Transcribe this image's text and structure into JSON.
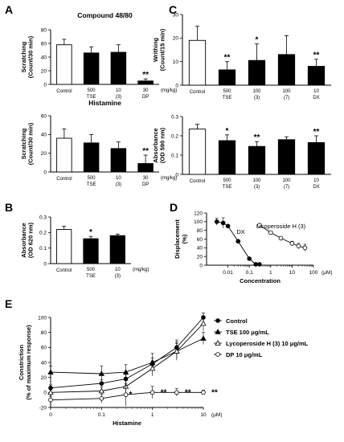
{
  "chart_data": [
    {
      "id": "A-top",
      "panel": "A",
      "type": "bar",
      "title": "Compound 48/80",
      "ylabel": "Scratching (Count/30 min)",
      "ylim": [
        0,
        80
      ],
      "yticks": [
        0,
        20,
        40,
        60,
        80
      ],
      "unit": "(mg/kg)",
      "categories": [
        {
          "name": "Control",
          "dose": "",
          "sub": ""
        },
        {
          "name": "TSE",
          "dose": "500",
          "sub": ""
        },
        {
          "name": "(3)",
          "dose": "10",
          "sub": ""
        },
        {
          "name": "DP",
          "dose": "30",
          "sub": ""
        }
      ],
      "values": [
        58,
        46,
        47,
        5
      ],
      "errors": [
        8,
        9,
        11,
        3
      ],
      "fills": [
        "#ffffff",
        "#000000",
        "#000000",
        "#000000"
      ],
      "significance": [
        "",
        "",
        "",
        "**"
      ]
    },
    {
      "id": "A-bottom",
      "panel": "",
      "type": "bar",
      "title": "Histamine",
      "ylabel": "Scratching (Count/30 min)",
      "ylim": [
        0,
        60
      ],
      "yticks": [
        0,
        20,
        40,
        60
      ],
      "unit": "(mg/kg)",
      "categories": [
        {
          "name": "Control",
          "dose": "",
          "sub": ""
        },
        {
          "name": "TSE",
          "dose": "500",
          "sub": ""
        },
        {
          "name": "(3)",
          "dose": "10",
          "sub": ""
        },
        {
          "name": "DP",
          "dose": "30",
          "sub": ""
        }
      ],
      "values": [
        36,
        31,
        25,
        9
      ],
      "errors": [
        10,
        9,
        7,
        9
      ],
      "fills": [
        "#ffffff",
        "#000000",
        "#000000",
        "#000000"
      ],
      "significance": [
        "",
        "",
        "",
        "**"
      ]
    },
    {
      "id": "B",
      "panel": "B",
      "type": "bar",
      "title": "",
      "ylabel": "Absorbance (OD 620 nm)",
      "ylim": [
        0,
        0.3
      ],
      "yticks": [
        0,
        0.1,
        0.2,
        0.3
      ],
      "unit": "(mg/kg)",
      "categories": [
        {
          "name": "Control",
          "dose": "",
          "sub": ""
        },
        {
          "name": "TSE",
          "dose": "500",
          "sub": ""
        },
        {
          "name": "(3)",
          "dose": "10",
          "sub": ""
        }
      ],
      "values": [
        0.22,
        0.16,
        0.18
      ],
      "errors": [
        0.02,
        0.015,
        0.01
      ],
      "fills": [
        "#ffffff",
        "#000000",
        "#000000"
      ],
      "significance": [
        "",
        "*",
        ""
      ]
    },
    {
      "id": "C-top",
      "panel": "C",
      "type": "bar",
      "title": "",
      "ylabel": "Writhing (Count/15 min)",
      "ylim": [
        0,
        30
      ],
      "yticks": [
        0,
        10,
        20,
        30
      ],
      "unit": "",
      "categories": [
        {
          "name": "Control",
          "dose": "",
          "sub": ""
        },
        {
          "name": "TSE",
          "dose": "500",
          "sub": ""
        },
        {
          "name": "",
          "dose": "100",
          "sub": "(3)"
        },
        {
          "name": "",
          "dose": "100",
          "sub": "(7)"
        },
        {
          "name": "DX",
          "dose": "10",
          "sub": ""
        }
      ],
      "values": [
        19,
        6.5,
        10.5,
        13,
        8
      ],
      "errors": [
        6,
        3.5,
        7,
        8,
        3
      ],
      "fills": [
        "#ffffff",
        "#000000",
        "#000000",
        "#000000",
        "#000000"
      ],
      "significance": [
        "",
        "**",
        "*",
        "",
        "**"
      ]
    },
    {
      "id": "C-bottom",
      "panel": "",
      "type": "bar",
      "title": "",
      "ylabel": "Absorbance (OD 590 nm)",
      "ylim": [
        0,
        0.3
      ],
      "yticks": [
        0,
        0.1,
        0.2,
        0.3
      ],
      "unit": "",
      "categories": [
        {
          "name": "Control",
          "dose": "",
          "sub": ""
        },
        {
          "name": "TSE",
          "dose": "500",
          "sub": ""
        },
        {
          "name": "",
          "dose": "100",
          "sub": "(3)"
        },
        {
          "name": "",
          "dose": "100",
          "sub": "(7)"
        },
        {
          "name": "DX",
          "dose": "10",
          "sub": ""
        }
      ],
      "values": [
        0.235,
        0.175,
        0.145,
        0.18,
        0.165
      ],
      "errors": [
        0.025,
        0.03,
        0.025,
        0.015,
        0.035
      ],
      "fills": [
        "#ffffff",
        "#000000",
        "#000000",
        "#000000",
        "#000000"
      ],
      "significance": [
        "",
        "*",
        "**",
        "",
        "**"
      ]
    },
    {
      "id": "D",
      "panel": "D",
      "type": "line",
      "title": "",
      "xlabel": "Concentration",
      "ylabel": "Displacement (%)",
      "xscale": "log",
      "xlim": [
        0.001,
        100
      ],
      "xticks": [
        0.01,
        0.1,
        1,
        10,
        100
      ],
      "xticklabels": [
        "0.01",
        "0.1",
        "1",
        "10",
        "100"
      ],
      "xunit": "(μM)",
      "ylim": [
        0,
        120
      ],
      "yticks": [
        0,
        20,
        40,
        60,
        80,
        100,
        120
      ],
      "series": [
        {
          "name": "DX",
          "marker": "filled",
          "x": [
            0.003,
            0.006,
            0.01,
            0.03,
            0.1,
            0.2,
            0.3
          ],
          "y": [
            100,
            97,
            90,
            55,
            15,
            2,
            2
          ],
          "err": [
            8,
            12,
            0,
            0,
            0,
            0,
            0
          ]
        },
        {
          "name": "Licoperoside H (3)",
          "marker": "open",
          "x": [
            0.3,
            1,
            3,
            10,
            20,
            40
          ],
          "y": [
            92,
            75,
            62,
            50,
            44,
            40
          ],
          "err": [
            0,
            0,
            0,
            5,
            6,
            8
          ]
        }
      ]
    },
    {
      "id": "E",
      "panel": "E",
      "type": "line",
      "title": "",
      "xlabel": "Histamine",
      "ylabel": "Constriction (% of maximum response)",
      "xscale": "log",
      "xlim": [
        0.01,
        10
      ],
      "xticks": [
        0.01,
        0.1,
        1,
        10
      ],
      "xticklabels": [
        "0",
        "0.1",
        "1",
        "10"
      ],
      "xunit": "(μM)",
      "ylim": [
        -20,
        100
      ],
      "yticks": [
        -20,
        0,
        20,
        40,
        60,
        80,
        100
      ],
      "legend": "top-right",
      "series": [
        {
          "name": "Control",
          "marker": "filled-circle",
          "x": [
            0.01,
            0.1,
            0.3,
            1,
            3,
            10
          ],
          "y": [
            6,
            12,
            18,
            38,
            60,
            100
          ],
          "err": [
            4,
            5,
            6,
            8,
            10,
            6
          ]
        },
        {
          "name": "TSE  100 μg/mL",
          "marker": "filled-triangle",
          "x": [
            0.01,
            0.1,
            0.3,
            1,
            3,
            10
          ],
          "y": [
            27,
            25,
            27,
            40,
            55,
            72
          ],
          "err": [
            8,
            10,
            10,
            12,
            10,
            8
          ]
        },
        {
          "name": "Lycoperoside H (3)  10 μg/mL",
          "marker": "open-triangle",
          "x": [
            0.01,
            0.1,
            0.3,
            1,
            3,
            10
          ],
          "y": [
            0,
            2,
            8,
            32,
            55,
            92
          ],
          "err": [
            4,
            5,
            8,
            10,
            12,
            10
          ]
        },
        {
          "name": "DP  10 μg/mL",
          "marker": "open-circle",
          "x": [
            0.01,
            0.1,
            0.3,
            1,
            3,
            10
          ],
          "y": [
            -10,
            -8,
            -3,
            0,
            0,
            0
          ],
          "err": [
            5,
            6,
            15,
            8,
            5,
            3
          ]
        }
      ],
      "significance": [
        {
          "x": 0.3,
          "label": "*"
        },
        {
          "x": 1,
          "label": "**"
        },
        {
          "x": 3,
          "label": "**"
        },
        {
          "x": 10,
          "label": "**"
        }
      ]
    }
  ]
}
